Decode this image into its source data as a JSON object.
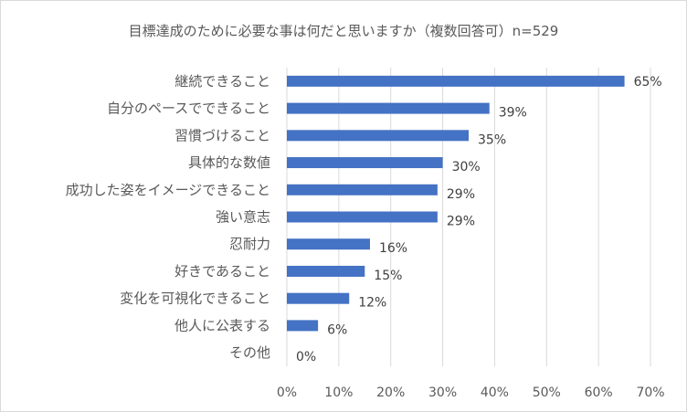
{
  "chart_data": {
    "type": "bar",
    "orientation": "horizontal",
    "title": "目標達成のために必要な事は何だと思いますか（複数回答可）n=529",
    "categories": [
      "継続できること",
      "自分のペースでできること",
      "習慣づけること",
      "具体的な数値",
      "成功した姿をイメージできること",
      "強い意志",
      "忍耐力",
      "好きであること",
      "変化を可視化できること",
      "他人に公表する",
      "その他"
    ],
    "values": [
      65,
      39,
      35,
      30,
      29,
      29,
      16,
      15,
      12,
      6,
      0
    ],
    "value_labels": [
      "65%",
      "39%",
      "35%",
      "30%",
      "29%",
      "29%",
      "16%",
      "15%",
      "12%",
      "6%",
      "0%"
    ],
    "xlim": [
      0,
      70
    ],
    "xticks": [
      "0%",
      "10%",
      "20%",
      "30%",
      "40%",
      "50%",
      "60%",
      "70%"
    ],
    "grid": true,
    "legend": "none",
    "bar_color": "#4472c4",
    "grid_color": "#d9d9d9",
    "text_color": "#595959"
  }
}
